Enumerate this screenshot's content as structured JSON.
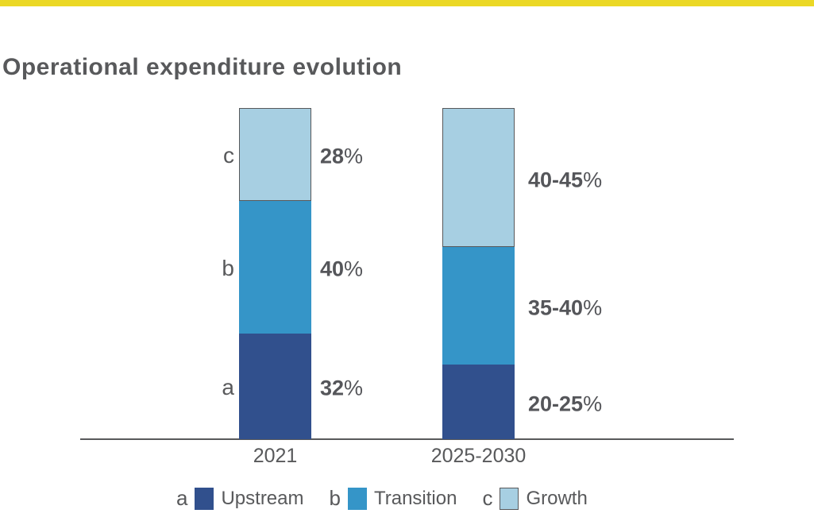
{
  "accent_bar_color": "#EBD826",
  "title": "Operational expenditure evolution",
  "text_color": "#58595B",
  "chart_data": {
    "type": "bar",
    "stacked": true,
    "title": "Operational expenditure evolution",
    "categories": [
      "2021",
      "2025-2030"
    ],
    "series": [
      {
        "name": "Upstream",
        "letter": "a",
        "color": "#31508D",
        "bordered": false,
        "labels": [
          "32%",
          "20-25%"
        ],
        "drawn_percents": [
          32,
          22.5
        ]
      },
      {
        "name": "Transition",
        "letter": "b",
        "color": "#3595C8",
        "bordered": false,
        "labels": [
          "40%",
          "35-40%"
        ],
        "drawn_percents": [
          40,
          35.5
        ]
      },
      {
        "name": "Growth",
        "letter": "c",
        "color": "#A7CFE2",
        "bordered": true,
        "labels": [
          "28%",
          "40-45%"
        ],
        "drawn_percents": [
          28,
          42
        ]
      }
    ],
    "segment_letter_labels": [
      "a",
      "b",
      "c"
    ],
    "legend_position": "bottom",
    "grid": false,
    "baseline_axis": true
  },
  "legend": {
    "items": [
      {
        "letter": "a",
        "label": "Upstream",
        "color": "#31508D",
        "bordered": false
      },
      {
        "letter": "b",
        "label": "Transition",
        "color": "#3595C8",
        "bordered": false
      },
      {
        "letter": "c",
        "label": "Growth",
        "color": "#A7CFE2",
        "bordered": true
      }
    ]
  }
}
